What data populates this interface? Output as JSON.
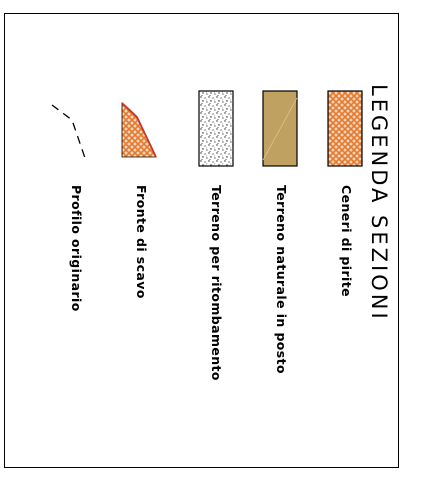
{
  "title": "LEGENDA  SEZIONI",
  "legend_items": [
    {
      "label": "Ceneri di pirite",
      "swatch": "crosshatch-orange"
    },
    {
      "label": "Terreno naturale in posto",
      "swatch": "solid-tan"
    },
    {
      "label": "Terreno per ritombamento",
      "swatch": "stipple"
    },
    {
      "label": "Fronte di scavo",
      "swatch": "crosshatch-orange-wedge"
    },
    {
      "label": "Profilo originario",
      "swatch": "dashed-line"
    }
  ],
  "colors": {
    "orange": "#e4782c",
    "orange_light": "#f6d7bf",
    "tan": "#bfa262",
    "stroke": "#000000"
  }
}
